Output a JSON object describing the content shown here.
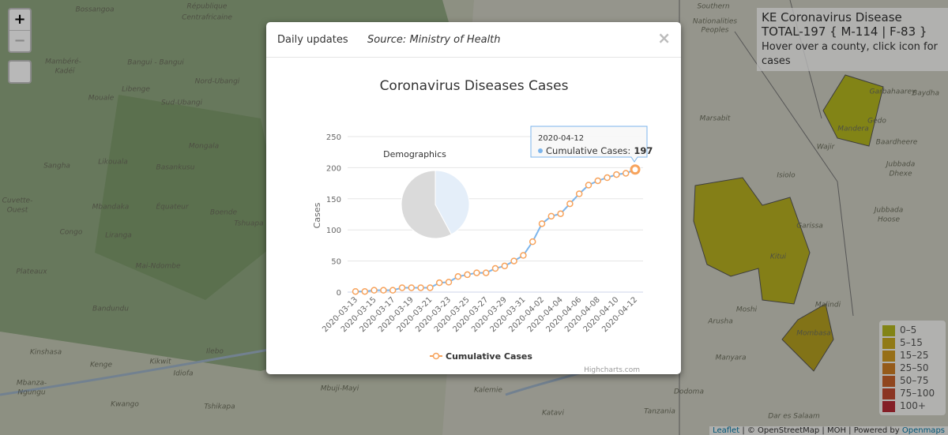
{
  "map": {
    "zoom_in": "+",
    "zoom_out": "−",
    "labels": [
      "Bossangoa",
      "République",
      "Centrafricaine",
      "Mambéré-",
      "Kadéï",
      "Bangui - Bangui",
      "Libenge",
      "Mouale",
      "Sud-Ubangi",
      "Nord-Ubangi",
      "Sangha",
      "Likouala",
      "Mongala",
      "Basankusu",
      "Cuvette-",
      "Ouest",
      "Mbandaka",
      "Équateur",
      "Boende",
      "Tshuapa",
      "Congo",
      "Liranga",
      "Plateaux",
      "Mai-Ndombe",
      "Bandundu",
      "Kinshasa",
      "Kenge",
      "Kikwit",
      "Idiofa",
      "Ilebo",
      "Mbanza-",
      "Ngungu",
      "Kwango",
      "Tshikapa",
      "Mbuji-Mayi",
      "Kalemie",
      "Katavi",
      "Dodoma",
      "Tanzania",
      "Dar es Salaam",
      "Arusha",
      "Moshi",
      "Manyara",
      "Southern",
      "Nationalities",
      "Peoples",
      "Marsabit",
      "Wajir",
      "Mandera",
      "Isiolo",
      "Garissa",
      "Kitui",
      "Malindi",
      "Mombasa",
      "Gedo",
      "Baardheere",
      "Jubbada",
      "Dhexe",
      "Jubbada",
      "Hoose",
      "Garbahaarey",
      "Baydha"
    ]
  },
  "info_box": {
    "title": "KE Coronavirus Disease",
    "totals": "TOTAL-197 { M-114 | F-83 }",
    "hint": "Hover over a county, click icon for cases"
  },
  "legend": {
    "items": [
      {
        "label": "0–5",
        "color": "#b5b81f"
      },
      {
        "label": "5–15",
        "color": "#c9a91f"
      },
      {
        "label": "15–25",
        "color": "#d19a20"
      },
      {
        "label": "25–50",
        "color": "#cf7f24"
      },
      {
        "label": "50–75",
        "color": "#c8622a"
      },
      {
        "label": "75–100",
        "color": "#c14a30"
      },
      {
        "label": "100+",
        "color": "#b82a35"
      }
    ]
  },
  "attribution": {
    "leaflet": "Leaflet",
    "rest": "| © OpenStreetMap | MOH | Powered by",
    "openmaps": "Openmaps"
  },
  "modal": {
    "title": "Daily updates",
    "source": "Source: Ministry of Health",
    "close": "×",
    "credits": "Highcharts.com",
    "tooltip": {
      "header": "2020-04-12",
      "label": "Cumulative Cases:",
      "value": 197
    }
  },
  "chart_data": [
    {
      "type": "line",
      "title": "Coronavirus Diseases Cases",
      "y_label": "Cases",
      "categories": [
        "2020-03-13",
        null,
        "2020-03-15",
        null,
        "2020-03-17",
        null,
        "2020-03-19",
        null,
        "2020-03-21",
        null,
        "2020-03-23",
        null,
        "2020-03-25",
        null,
        "2020-03-27",
        null,
        "2020-03-29",
        null,
        "2020-03-31",
        null,
        "2020-04-02",
        null,
        "2020-04-04",
        null,
        "2020-04-06",
        null,
        "2020-04-08",
        null,
        "2020-04-10",
        null,
        "2020-04-12"
      ],
      "series": [
        {
          "name": "Cumulative Cases",
          "color": "#7cb5ec",
          "marker_color": "#f7a35c",
          "values": [
            1,
            1,
            3,
            3,
            3,
            7,
            7,
            7,
            7,
            15,
            16,
            25,
            28,
            31,
            31,
            38,
            42,
            50,
            59,
            81,
            110,
            122,
            126,
            142,
            158,
            172,
            179,
            184,
            189,
            191,
            197
          ]
        }
      ],
      "ylim": [
        0,
        250
      ],
      "yticks": [
        0,
        50,
        100,
        150,
        200,
        250
      ],
      "grid": true
    },
    {
      "type": "pie",
      "title": "Demographics",
      "values": [
        114,
        83
      ],
      "colors": [
        "#dadada",
        "#e4eef9"
      ]
    }
  ]
}
